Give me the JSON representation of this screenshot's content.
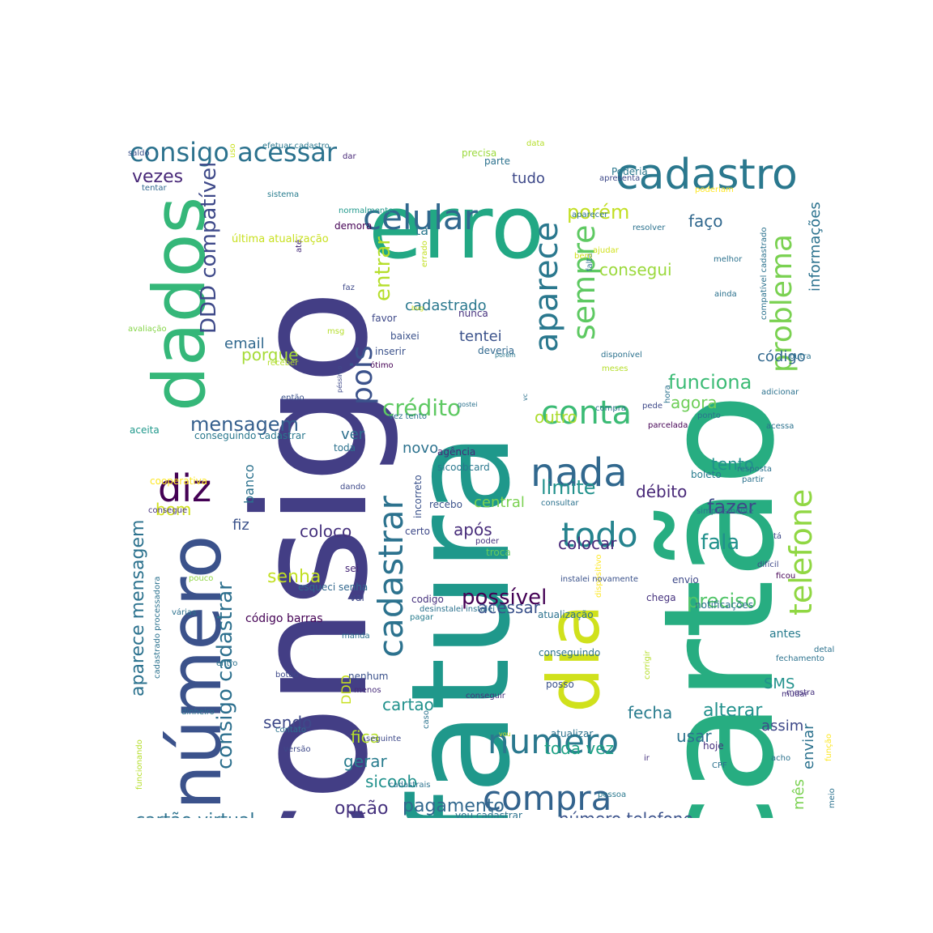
{
  "words": [
    {
      "text": "cartão",
      "color": "#27ad81"
    },
    {
      "text": "consigo",
      "color": "#433e85"
    },
    {
      "text": "fatura",
      "color": "#1f988b"
    },
    {
      "text": "erro",
      "color": "#22a884"
    },
    {
      "text": "número",
      "color": "#3b528b"
    },
    {
      "text": "dados",
      "color": "#35b779"
    },
    {
      "text": "dia",
      "color": "#d0e11c"
    },
    {
      "text": "cadastro",
      "color": "#2a788e"
    },
    {
      "text": "celular",
      "color": "#31688e"
    },
    {
      "text": "consigo acessar",
      "color": "#2c728e"
    },
    {
      "text": "aparece",
      "color": "#2a788e"
    },
    {
      "text": "sempre",
      "color": "#5ec962"
    },
    {
      "text": "problema",
      "color": "#7ad151"
    },
    {
      "text": "telefone",
      "color": "#90d743"
    },
    {
      "text": "conta",
      "color": "#3bbb75"
    },
    {
      "text": "nada",
      "color": "#31688e"
    },
    {
      "text": "todo",
      "color": "#25838e"
    },
    {
      "text": "compra",
      "color": "#33638d"
    },
    {
      "text": "numero",
      "color": "#2a788e"
    },
    {
      "text": "cadastrar",
      "color": "#2c728e"
    },
    {
      "text": "diz",
      "color": "#440154"
    },
    {
      "text": "DDD compatível",
      "color": "#3e4989"
    },
    {
      "text": "consigo cadastrar",
      "color": "#2d708e"
    },
    {
      "text": "aparece mensagem",
      "color": "#2c728e"
    },
    {
      "text": "mensagem",
      "color": "#355f8d"
    },
    {
      "text": "pois",
      "color": "#3b528b"
    },
    {
      "text": "crédito",
      "color": "#5ec962"
    },
    {
      "text": "entrar",
      "color": "#b5de2b"
    },
    {
      "text": "vezes",
      "color": "#482878"
    },
    {
      "text": "tudo",
      "color": "#3e4989"
    },
    {
      "text": "porém",
      "color": "#c2df23"
    },
    {
      "text": "faço",
      "color": "#31688e"
    },
    {
      "text": "consegui",
      "color": "#9bd93c"
    },
    {
      "text": "informações",
      "color": "#2c728e"
    },
    {
      "text": "código",
      "color": "#31688e"
    },
    {
      "text": "funciona",
      "color": "#3bbb75"
    },
    {
      "text": "agora",
      "color": "#6ece58"
    },
    {
      "text": "outro",
      "color": "#addc30"
    },
    {
      "text": "tento",
      "color": "#21918c"
    },
    {
      "text": "limite",
      "color": "#21918c"
    },
    {
      "text": "débito",
      "color": "#482878"
    },
    {
      "text": "fazer",
      "color": "#3e4989"
    },
    {
      "text": "fala",
      "color": "#21918c"
    },
    {
      "text": "preciso",
      "color": "#52c569"
    },
    {
      "text": "alterar",
      "color": "#21918c"
    },
    {
      "text": "fecha",
      "color": "#287c8e"
    },
    {
      "text": "usar",
      "color": "#2c728e"
    },
    {
      "text": "toda vez",
      "color": "#20a386"
    },
    {
      "text": "número telefone",
      "color": "#3b528b"
    },
    {
      "text": "mês",
      "color": "#7ad151"
    },
    {
      "text": "enviar",
      "color": "#2c728e"
    },
    {
      "text": "assim",
      "color": "#3e4989"
    },
    {
      "text": "SMS",
      "color": "#21918c"
    },
    {
      "text": "antes",
      "color": "#287c8e"
    },
    {
      "text": "possível",
      "color": "#440154"
    },
    {
      "text": "acessar",
      "color": "#3b528b"
    },
    {
      "text": "colocar",
      "color": "#482878"
    },
    {
      "text": "após",
      "color": "#472c7a"
    },
    {
      "text": "central",
      "color": "#7ad151"
    },
    {
      "text": "novo",
      "color": "#2c728e"
    },
    {
      "text": "cadastrado",
      "color": "#2a788e"
    },
    {
      "text": "tentei",
      "color": "#3b528b"
    },
    {
      "text": "ver",
      "color": "#2d708e"
    },
    {
      "text": "email",
      "color": "#31688e"
    },
    {
      "text": "porque",
      "color": "#a5db36"
    },
    {
      "text": "ta",
      "color": "#2a788e"
    },
    {
      "text": "senha",
      "color": "#c2df23"
    },
    {
      "text": "coloco",
      "color": "#46327e"
    },
    {
      "text": "fiz",
      "color": "#3b528b"
    },
    {
      "text": "banco",
      "color": "#2c728e"
    },
    {
      "text": "bom",
      "color": "#d0e11c"
    },
    {
      "text": "cartão virtual",
      "color": "#2c728e"
    },
    {
      "text": "opção",
      "color": "#46327e"
    },
    {
      "text": "pagamento",
      "color": "#31688e"
    },
    {
      "text": "sicoob",
      "color": "#21918c"
    },
    {
      "text": "gerar",
      "color": "#287c8e"
    },
    {
      "text": "fica",
      "color": "#b5de2b"
    },
    {
      "text": "cartao",
      "color": "#21918c"
    },
    {
      "text": "DDD",
      "color": "#c8e020"
    },
    {
      "text": "sendo",
      "color": "#3e4989"
    },
    {
      "text": "código barras",
      "color": "#440154"
    },
    {
      "text": "sei",
      "color": "#482878"
    },
    {
      "text": "esqueci senha",
      "color": "#31688e"
    },
    {
      "text": "vai",
      "color": "#3e4989"
    },
    {
      "text": "codigo",
      "color": "#46327e"
    },
    {
      "text": "agência",
      "color": "#482878"
    },
    {
      "text": "sicoobcard",
      "color": "#2a788e"
    },
    {
      "text": "recebo",
      "color": "#3b528b"
    },
    {
      "text": "certo",
      "color": "#3e4989"
    },
    {
      "text": "incorreto",
      "color": "#3b528b"
    },
    {
      "text": "poder",
      "color": "#46327e"
    },
    {
      "text": "troca",
      "color": "#65cb5e"
    },
    {
      "text": "Poderia",
      "color": "#2a788e"
    },
    {
      "text": "apresenta",
      "color": "#3e4989"
    },
    {
      "text": "parte",
      "color": "#2c728e"
    },
    {
      "text": "precisa",
      "color": "#9bd93c"
    },
    {
      "text": "data",
      "color": "#b5de2b"
    },
    {
      "text": "efetuar cadastro",
      "color": "#2a788e"
    },
    {
      "text": "dar",
      "color": "#482878"
    },
    {
      "text": "saldo",
      "color": "#3b528b"
    },
    {
      "text": "uso",
      "color": "#cae11f"
    },
    {
      "text": "tentar",
      "color": "#31688e"
    },
    {
      "text": "sistema",
      "color": "#287c8e"
    },
    {
      "text": "normalmente",
      "color": "#1f988b"
    },
    {
      "text": "demora",
      "color": "#440154"
    },
    {
      "text": "última atualização",
      "color": "#c8e020"
    },
    {
      "text": "até",
      "color": "#472c7a"
    },
    {
      "text": "errado",
      "color": "#c2df23"
    },
    {
      "text": "faz",
      "color": "#3e4989"
    },
    {
      "text": "favor",
      "color": "#3e4989"
    },
    {
      "text": "nunca",
      "color": "#46327e"
    },
    {
      "text": "baixei",
      "color": "#3b528b"
    },
    {
      "text": "inserir",
      "color": "#3b528b"
    },
    {
      "text": "deveria",
      "color": "#31688e"
    },
    {
      "text": "ótimo",
      "color": "#440154"
    },
    {
      "text": "porém",
      "color": "#2a788e"
    },
    {
      "text": "msg",
      "color": "#b5de2b"
    },
    {
      "text": "avaliação",
      "color": "#86d549"
    },
    {
      "text": "receber",
      "color": "#b5de2b"
    },
    {
      "text": "então",
      "color": "#3b528b"
    },
    {
      "text": "péssimo",
      "color": "#3e4989"
    },
    {
      "text": "conseguindo",
      "color": "#2c728e"
    },
    {
      "text": "aceita",
      "color": "#1f988b"
    },
    {
      "text": "conseguindo cadastrar",
      "color": "#2a788e"
    },
    {
      "text": "toda",
      "color": "#2c728e"
    },
    {
      "text": "cooperativa",
      "color": "#fde725"
    },
    {
      "text": "dando",
      "color": "#3e4989"
    },
    {
      "text": "consegue",
      "color": "#46327e"
    },
    {
      "text": "pouco",
      "color": "#90d743"
    },
    {
      "text": "várias",
      "color": "#2c728e"
    },
    {
      "text": "cadastrado processadora",
      "color": "#2c728e"
    },
    {
      "text": "manda",
      "color": "#2c728e"
    },
    {
      "text": "entro",
      "color": "#2c728e"
    },
    {
      "text": "botão",
      "color": "#3e4989"
    },
    {
      "text": "dinheiro",
      "color": "#2c728e"
    },
    {
      "text": "contato",
      "color": "#2c728e"
    },
    {
      "text": "versão",
      "color": "#3e4989"
    },
    {
      "text": "cadastrais",
      "color": "#2c728e"
    },
    {
      "text": "funcionando",
      "color": "#b5de2b"
    },
    {
      "text": "seguinte",
      "color": "#3e4989"
    },
    {
      "text": "vou cadastrar",
      "color": "#2c728e"
    },
    {
      "text": "nenhum",
      "color": "#3b528b"
    },
    {
      "text": "menos",
      "color": "#472c7a"
    },
    {
      "text": "conseguir",
      "color": "#46327e"
    },
    {
      "text": "caso",
      "color": "#2c728e"
    },
    {
      "text": "vou",
      "color": "#cae11f"
    },
    {
      "text": "ir",
      "color": "#46327e"
    },
    {
      "text": "pagar",
      "color": "#287c8e"
    },
    {
      "text": "desinstalei instalei",
      "color": "#2c728e"
    },
    {
      "text": "dispositivo",
      "color": "#fde725"
    },
    {
      "text": "atualização",
      "color": "#2c728e"
    },
    {
      "text": "chega",
      "color": "#46327e"
    },
    {
      "text": "envio",
      "color": "#3e4989"
    },
    {
      "text": "notificações",
      "color": "#2c728e"
    },
    {
      "text": "atualizar",
      "color": "#2c728e"
    },
    {
      "text": "posso",
      "color": "#3b528b"
    },
    {
      "text": "corrigir",
      "color": "#b5de2b"
    },
    {
      "text": "hoje",
      "color": "#46327e"
    },
    {
      "text": "CPF",
      "color": "#2c728e"
    },
    {
      "text": "acho",
      "color": "#2c728e"
    },
    {
      "text": "função",
      "color": "#fde725"
    },
    {
      "text": "pessoa",
      "color": "#2a788e"
    },
    {
      "text": "meio",
      "color": "#2c728e"
    },
    {
      "text": "mudar",
      "color": "#46327e"
    },
    {
      "text": "mostra",
      "color": "#46327e"
    },
    {
      "text": "fechamento",
      "color": "#2c728e"
    },
    {
      "text": "detalhe",
      "color": "#2c728e"
    },
    {
      "text": "instalei novamente",
      "color": "#3b528b"
    },
    {
      "text": "ficou",
      "color": "#440154"
    },
    {
      "text": "difícil",
      "color": "#3e4989"
    },
    {
      "text": "tá",
      "color": "#3e4989"
    },
    {
      "text": "simplesmente",
      "color": "#2c728e"
    },
    {
      "text": "consultar",
      "color": "#2c728e"
    },
    {
      "text": "boleto",
      "color": "#287c8e"
    },
    {
      "text": "resposta",
      "color": "#2c728e"
    },
    {
      "text": "partir",
      "color": "#2c728e"
    },
    {
      "text": "ponto",
      "color": "#2c728e"
    },
    {
      "text": "parcelada",
      "color": "#440154"
    },
    {
      "text": "acessa",
      "color": "#2c728e"
    },
    {
      "text": "adicionar",
      "color": "#2c728e"
    },
    {
      "text": "compra",
      "color": "#2c728e"
    },
    {
      "text": "pede",
      "color": "#3e4989"
    },
    {
      "text": "hora",
      "color": "#2c728e"
    },
    {
      "text": "meses",
      "color": "#b5de2b"
    },
    {
      "text": "disponível",
      "color": "#2c728e"
    },
    {
      "text": "outra",
      "color": "#2c728e"
    },
    {
      "text": "compatível cadastrado",
      "color": "#2c728e"
    },
    {
      "text": "melhor",
      "color": "#2c728e"
    },
    {
      "text": "ainda",
      "color": "#2c728e"
    },
    {
      "text": "ajudar",
      "color": "#d0e11c"
    },
    {
      "text": "falta",
      "color": "#2c728e"
    },
    {
      "text": "bem",
      "color": "#d0e11c"
    },
    {
      "text": "resolver",
      "color": "#2c728e"
    },
    {
      "text": "aparecer",
      "color": "#2c728e"
    },
    {
      "text": "poderiam",
      "color": "#fde725"
    },
    {
      "text": "bug",
      "color": "#d0e11c"
    },
    {
      "text": "vez tento",
      "color": "#2c728e"
    },
    {
      "text": "gostei",
      "color": "#2c728e"
    },
    {
      "text": "vc",
      "color": "#2c728e"
    }
  ]
}
